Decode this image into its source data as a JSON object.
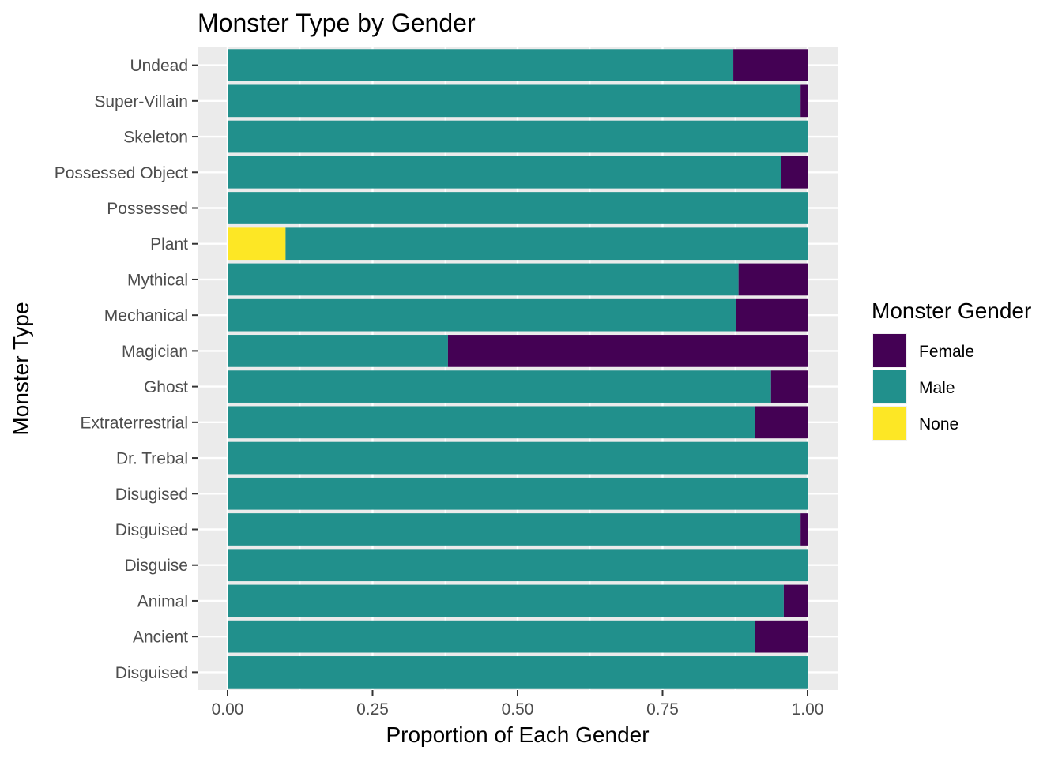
{
  "chart_data": {
    "type": "bar",
    "orientation": "horizontal",
    "stacked": "fill",
    "title": "Monster Type by Gender",
    "xlabel": "Proportion of Each Gender",
    "ylabel": "Monster Type",
    "xlim": [
      0,
      1
    ],
    "xticks": [
      "0.00",
      "0.25",
      "0.50",
      "0.75",
      "1.00"
    ],
    "grid": true,
    "legend": {
      "title": "Monster Gender",
      "position": "right"
    },
    "categories": [
      "Undead",
      "Super-Villain",
      "Skeleton",
      "Possessed Object",
      "Possessed",
      "Plant",
      "Mythical",
      "Mechanical",
      "Magician",
      "Ghost",
      "Extraterrestrial",
      "Dr. Trebal",
      "Disugised",
      "Disguised",
      "Disguise",
      "Animal",
      "Ancient",
      "Disguised"
    ],
    "series": [
      {
        "name": "Female",
        "color": "#440154",
        "values": [
          0.128,
          0.012,
          0,
          0.046,
          0,
          0,
          0.119,
          0.124,
          0.62,
          0.063,
          0.09,
          0,
          0,
          0.012,
          0,
          0.041,
          0.09,
          0
        ]
      },
      {
        "name": "Male",
        "color": "#21908C",
        "values": [
          0.872,
          0.988,
          1,
          0.954,
          1,
          0.9,
          0.881,
          0.876,
          0.38,
          0.937,
          0.91,
          1,
          1,
          0.988,
          1,
          0.959,
          0.91,
          1
        ]
      },
      {
        "name": "None",
        "color": "#FDE725",
        "values": [
          0,
          0,
          0,
          0,
          0,
          0.1,
          0,
          0,
          0,
          0,
          0,
          0,
          0,
          0,
          0,
          0,
          0,
          0
        ]
      }
    ],
    "panel_bg": "#EBEBEB",
    "grid_color": "#FFFFFF"
  }
}
